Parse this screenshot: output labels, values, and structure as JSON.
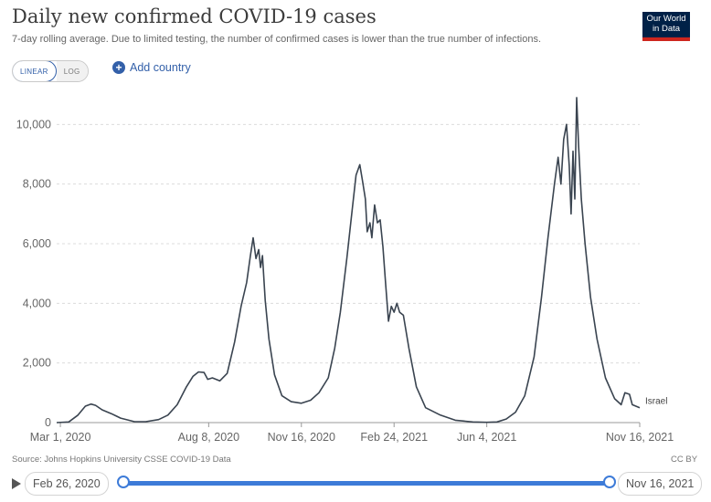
{
  "header": {
    "title": "Daily new confirmed COVID-19 cases",
    "subtitle": "7-day rolling average. Due to limited testing, the number of confirmed cases is lower than the true number of infections.",
    "logo_line1": "Our World",
    "logo_line2": "in Data"
  },
  "controls": {
    "scale_linear": "LINEAR",
    "scale_log": "LOG",
    "scale_selected": "LINEAR",
    "add_country": "Add country"
  },
  "footer": {
    "source": "Source: Johns Hopkins University CSSE COVID-19 Data",
    "license": "CC BY"
  },
  "timeline": {
    "start": "Feb 26, 2020",
    "end": "Nov 16, 2021"
  },
  "colors": {
    "line": "#3a4450",
    "accent": "#3360a9",
    "logo_bg": "#002147",
    "logo_bar": "#ce261e"
  },
  "chart_data": {
    "type": "line",
    "title": "Daily new confirmed COVID-19 cases",
    "subtitle": "7-day rolling average. Due to limited testing, the number of confirmed cases is lower than the true number of infections.",
    "xlabel": "",
    "ylabel": "",
    "ylim": [
      0,
      10500
    ],
    "yticks": [
      0,
      2000,
      4000,
      6000,
      8000,
      10000
    ],
    "ytick_labels": [
      "0",
      "2,000",
      "4,000",
      "6,000",
      "8,000",
      "10,000"
    ],
    "xticks": [
      "2020-03-01",
      "2020-08-08",
      "2020-11-16",
      "2021-02-24",
      "2021-06-04",
      "2021-11-16"
    ],
    "xtick_labels": [
      "Mar 1, 2020",
      "Aug 8, 2020",
      "Nov 16, 2020",
      "Feb 24, 2021",
      "Jun 4, 2021",
      "Nov 16, 2021"
    ],
    "xlim": [
      "2020-02-26",
      "2021-11-16"
    ],
    "grid": "horizontal dashed",
    "series": [
      {
        "name": "Israel",
        "points": [
          [
            "2020-02-26",
            0
          ],
          [
            "2020-03-10",
            20
          ],
          [
            "2020-03-20",
            250
          ],
          [
            "2020-03-28",
            550
          ],
          [
            "2020-04-03",
            620
          ],
          [
            "2020-04-08",
            580
          ],
          [
            "2020-04-15",
            430
          ],
          [
            "2020-04-25",
            300
          ],
          [
            "2020-05-05",
            150
          ],
          [
            "2020-05-20",
            30
          ],
          [
            "2020-06-01",
            30
          ],
          [
            "2020-06-15",
            100
          ],
          [
            "2020-06-25",
            250
          ],
          [
            "2020-07-05",
            600
          ],
          [
            "2020-07-15",
            1200
          ],
          [
            "2020-07-22",
            1550
          ],
          [
            "2020-07-28",
            1700
          ],
          [
            "2020-08-03",
            1680
          ],
          [
            "2020-08-07",
            1450
          ],
          [
            "2020-08-12",
            1500
          ],
          [
            "2020-08-20",
            1400
          ],
          [
            "2020-08-28",
            1650
          ],
          [
            "2020-09-05",
            2700
          ],
          [
            "2020-09-12",
            3900
          ],
          [
            "2020-09-18",
            4700
          ],
          [
            "2020-09-22",
            5600
          ],
          [
            "2020-09-25",
            6200
          ],
          [
            "2020-09-28",
            5500
          ],
          [
            "2020-10-01",
            5800
          ],
          [
            "2020-10-03",
            5200
          ],
          [
            "2020-10-05",
            5600
          ],
          [
            "2020-10-08",
            4100
          ],
          [
            "2020-10-12",
            2800
          ],
          [
            "2020-10-18",
            1600
          ],
          [
            "2020-10-26",
            900
          ],
          [
            "2020-11-05",
            700
          ],
          [
            "2020-11-16",
            650
          ],
          [
            "2020-11-26",
            750
          ],
          [
            "2020-12-05",
            1000
          ],
          [
            "2020-12-15",
            1500
          ],
          [
            "2020-12-22",
            2500
          ],
          [
            "2020-12-28",
            3700
          ],
          [
            "2021-01-04",
            5500
          ],
          [
            "2021-01-10",
            7200
          ],
          [
            "2021-01-14",
            8300
          ],
          [
            "2021-01-18",
            8650
          ],
          [
            "2021-01-21",
            8100
          ],
          [
            "2021-01-24",
            7500
          ],
          [
            "2021-01-26",
            6400
          ],
          [
            "2021-01-29",
            6700
          ],
          [
            "2021-01-31",
            6200
          ],
          [
            "2021-02-03",
            7300
          ],
          [
            "2021-02-06",
            6700
          ],
          [
            "2021-02-09",
            6800
          ],
          [
            "2021-02-12",
            5900
          ],
          [
            "2021-02-15",
            4600
          ],
          [
            "2021-02-18",
            3400
          ],
          [
            "2021-02-21",
            3900
          ],
          [
            "2021-02-24",
            3700
          ],
          [
            "2021-02-27",
            4000
          ],
          [
            "2021-03-02",
            3700
          ],
          [
            "2021-03-06",
            3600
          ],
          [
            "2021-03-12",
            2500
          ],
          [
            "2021-03-20",
            1200
          ],
          [
            "2021-03-30",
            500
          ],
          [
            "2021-04-15",
            250
          ],
          [
            "2021-05-01",
            80
          ],
          [
            "2021-05-20",
            20
          ],
          [
            "2021-06-04",
            10
          ],
          [
            "2021-06-15",
            20
          ],
          [
            "2021-06-25",
            120
          ],
          [
            "2021-07-05",
            350
          ],
          [
            "2021-07-15",
            900
          ],
          [
            "2021-07-25",
            2200
          ],
          [
            "2021-08-02",
            4200
          ],
          [
            "2021-08-09",
            6200
          ],
          [
            "2021-08-16",
            8000
          ],
          [
            "2021-08-20",
            8900
          ],
          [
            "2021-08-23",
            8000
          ],
          [
            "2021-08-26",
            9500
          ],
          [
            "2021-08-29",
            10000
          ],
          [
            "2021-09-01",
            8600
          ],
          [
            "2021-09-03",
            7000
          ],
          [
            "2021-09-05",
            9100
          ],
          [
            "2021-09-07",
            7500
          ],
          [
            "2021-09-09",
            10900
          ],
          [
            "2021-09-11",
            9300
          ],
          [
            "2021-09-14",
            7500
          ],
          [
            "2021-09-18",
            6000
          ],
          [
            "2021-09-24",
            4200
          ],
          [
            "2021-10-01",
            2800
          ],
          [
            "2021-10-10",
            1500
          ],
          [
            "2021-10-20",
            800
          ],
          [
            "2021-10-27",
            600
          ],
          [
            "2021-10-31",
            1000
          ],
          [
            "2021-11-05",
            950
          ],
          [
            "2021-11-08",
            600
          ],
          [
            "2021-11-16",
            500
          ]
        ]
      }
    ]
  }
}
